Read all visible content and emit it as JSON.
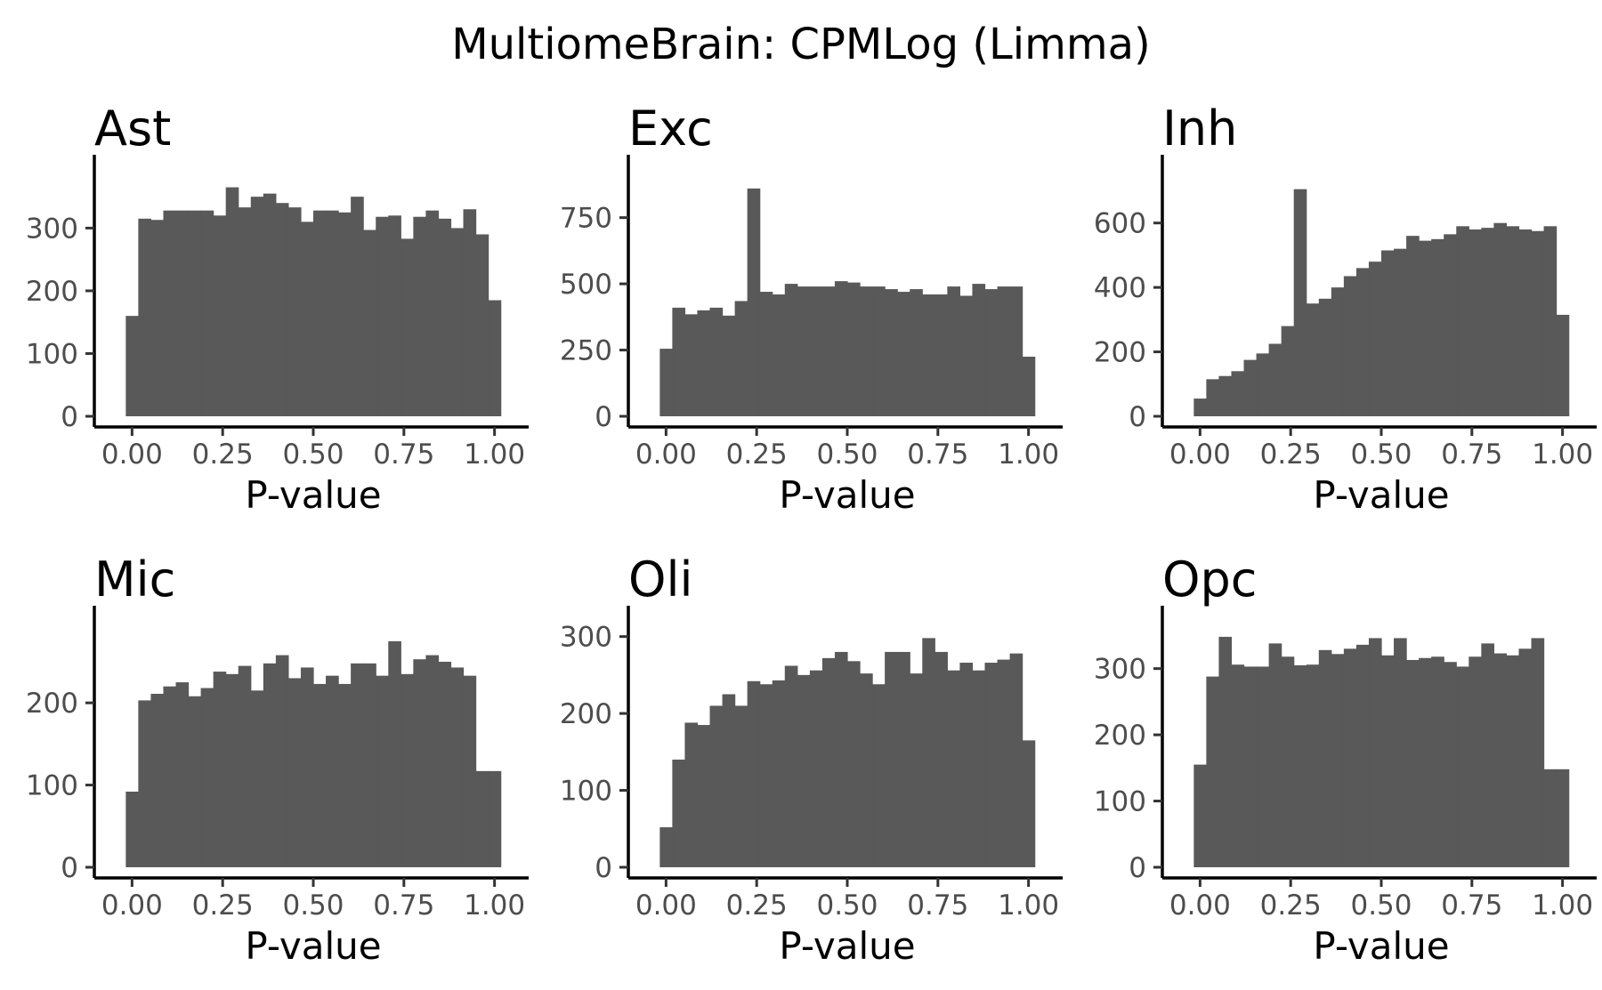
{
  "figure": {
    "title": "MultiomeBrain: CPMLog (Limma)",
    "bar_color": "#595959"
  },
  "chart_data": [
    {
      "type": "bar",
      "title": "Ast",
      "xlabel": "P-value",
      "ylabel": "",
      "xlim": [
        -0.05,
        1.05
      ],
      "ylim": [
        0,
        380
      ],
      "bins": 30,
      "xticks": [
        0,
        0.25,
        0.5,
        0.75,
        1
      ],
      "xtick_labels": [
        "0.00",
        "0.25",
        "0.50",
        "0.75",
        "1.00"
      ],
      "yticks": [
        0,
        100,
        200,
        300
      ],
      "ytick_labels": [
        "0",
        "100",
        "200",
        "300"
      ],
      "values": [
        160,
        315,
        313,
        328,
        328,
        328,
        328,
        320,
        365,
        333,
        350,
        355,
        340,
        333,
        310,
        328,
        328,
        325,
        350,
        297,
        318,
        320,
        283,
        318,
        328,
        315,
        300,
        330,
        290,
        185
      ]
    },
    {
      "type": "bar",
      "title": "Exc",
      "xlabel": "P-value",
      "ylabel": "",
      "xlim": [
        -0.05,
        1.05
      ],
      "ylim": [
        0,
        900
      ],
      "bins": 30,
      "xticks": [
        0,
        0.25,
        0.5,
        0.75,
        1
      ],
      "xtick_labels": [
        "0.00",
        "0.25",
        "0.50",
        "0.75",
        "1.00"
      ],
      "yticks": [
        0,
        250,
        500,
        750
      ],
      "ytick_labels": [
        "0",
        "250",
        "500",
        "750"
      ],
      "values": [
        255,
        410,
        385,
        400,
        410,
        380,
        435,
        860,
        470,
        460,
        500,
        490,
        490,
        490,
        510,
        505,
        490,
        490,
        480,
        470,
        480,
        460,
        460,
        490,
        455,
        500,
        480,
        490,
        490,
        225
      ]
    },
    {
      "type": "bar",
      "title": "Inh",
      "xlabel": "P-value",
      "ylabel": "",
      "xlim": [
        -0.05,
        1.05
      ],
      "ylim": [
        0,
        740
      ],
      "bins": 30,
      "xticks": [
        0,
        0.25,
        0.5,
        0.75,
        1
      ],
      "xtick_labels": [
        "0.00",
        "0.25",
        "0.50",
        "0.75",
        "1.00"
      ],
      "yticks": [
        0,
        200,
        400,
        600
      ],
      "ytick_labels": [
        "0",
        "200",
        "400",
        "600"
      ],
      "values": [
        55,
        115,
        125,
        140,
        175,
        195,
        225,
        280,
        705,
        350,
        365,
        400,
        435,
        460,
        480,
        515,
        520,
        560,
        545,
        550,
        565,
        590,
        580,
        585,
        600,
        590,
        580,
        575,
        590,
        315
      ]
    },
    {
      "type": "bar",
      "title": "Mic",
      "xlabel": "P-value",
      "ylabel": "",
      "xlim": [
        -0.05,
        1.05
      ],
      "ylim": [
        0,
        290
      ],
      "bins": 30,
      "xticks": [
        0,
        0.25,
        0.5,
        0.75,
        1
      ],
      "xtick_labels": [
        "0.00",
        "0.25",
        "0.50",
        "0.75",
        "1.00"
      ],
      "yticks": [
        0,
        100,
        200
      ],
      "ytick_labels": [
        "0",
        "100",
        "200"
      ],
      "values": [
        92,
        203,
        211,
        220,
        225,
        208,
        218,
        238,
        235,
        245,
        215,
        248,
        258,
        230,
        243,
        223,
        233,
        223,
        248,
        248,
        233,
        275,
        235,
        253,
        258,
        250,
        243,
        233,
        117,
        117
      ]
    },
    {
      "type": "bar",
      "title": "Oli",
      "xlabel": "P-value",
      "ylabel": "",
      "xlim": [
        -0.05,
        1.05
      ],
      "ylim": [
        0,
        310
      ],
      "bins": 30,
      "xticks": [
        0,
        0.25,
        0.5,
        0.75,
        1
      ],
      "xtick_labels": [
        "0.00",
        "0.25",
        "0.50",
        "0.75",
        "1.00"
      ],
      "yticks": [
        0,
        100,
        200,
        300
      ],
      "ytick_labels": [
        "0",
        "100",
        "200",
        "300"
      ],
      "values": [
        52,
        140,
        188,
        185,
        210,
        225,
        210,
        242,
        238,
        243,
        262,
        250,
        256,
        272,
        280,
        268,
        252,
        238,
        280,
        280,
        252,
        298,
        280,
        256,
        266,
        256,
        266,
        270,
        278,
        165
      ]
    },
    {
      "type": "bar",
      "title": "Opc",
      "xlabel": "P-value",
      "ylabel": "",
      "xlim": [
        -0.05,
        1.05
      ],
      "ylim": [
        0,
        360
      ],
      "bins": 30,
      "xticks": [
        0,
        0.25,
        0.5,
        0.75,
        1
      ],
      "xtick_labels": [
        "0.00",
        "0.25",
        "0.50",
        "0.75",
        "1.00"
      ],
      "yticks": [
        0,
        100,
        200,
        300
      ],
      "ytick_labels": [
        "0",
        "100",
        "200",
        "300"
      ],
      "values": [
        155,
        288,
        348,
        306,
        303,
        303,
        338,
        318,
        305,
        306,
        328,
        322,
        330,
        336,
        346,
        320,
        346,
        313,
        316,
        318,
        310,
        303,
        318,
        338,
        323,
        320,
        330,
        346,
        148,
        148
      ]
    }
  ]
}
